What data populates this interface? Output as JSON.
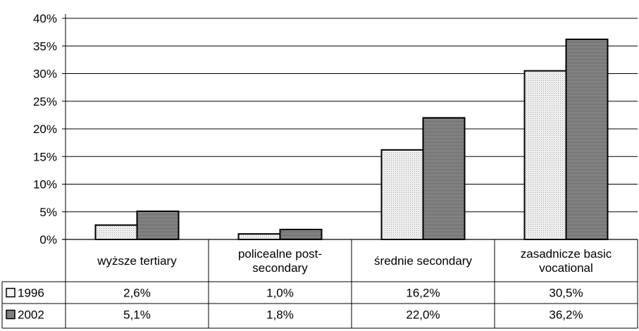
{
  "chart_data": {
    "type": "bar",
    "categories": [
      [
        "wyższe tertiary"
      ],
      [
        "policealne post-",
        "secondary"
      ],
      [
        "średnie secondary"
      ],
      [
        "zasadnicze basic",
        "vocational"
      ]
    ],
    "series": [
      {
        "name": "1996",
        "values": [
          2.6,
          1.0,
          16.2,
          30.5
        ],
        "labels": [
          "2,6%",
          "1,0%",
          "16,2%",
          "30,5%"
        ],
        "color": "#ececec",
        "pattern": "dotted"
      },
      {
        "name": "2002",
        "values": [
          5.1,
          1.8,
          22.0,
          36.2
        ],
        "labels": [
          "5,1%",
          "1,8%",
          "22,0%",
          "36,2%"
        ],
        "color": "#808080",
        "pattern": "horizontal-lines"
      }
    ],
    "ylim": [
      0,
      40
    ],
    "yticks": [
      "0%",
      "5%",
      "10%",
      "15%",
      "20%",
      "25%",
      "30%",
      "35%",
      "40%"
    ],
    "grid": true,
    "legend": "data-table-left"
  }
}
